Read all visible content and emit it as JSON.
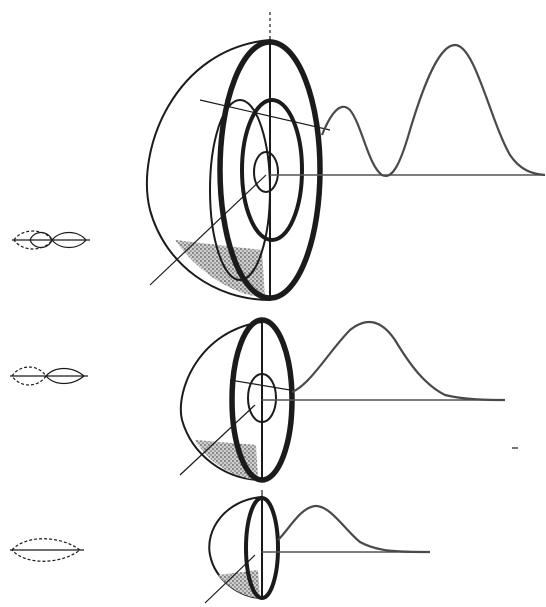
{
  "figure": {
    "background": "#ffffff",
    "ink_color": "#1b1b1b",
    "stipple_color": "#7a7a7a",
    "dark_fill": "#2a2a2a",
    "rows": [
      {
        "id": "top",
        "lobe_icon": "three-lobe-orbital-icon",
        "shells": 3,
        "curve_peaks": 2
      },
      {
        "id": "middle",
        "lobe_icon": "two-lobe-orbital-icon",
        "shells": 2,
        "curve_peaks": 1
      },
      {
        "id": "bottom",
        "lobe_icon": "single-lobe-orbital-icon",
        "shells": 1,
        "curve_peaks": 1
      }
    ]
  }
}
